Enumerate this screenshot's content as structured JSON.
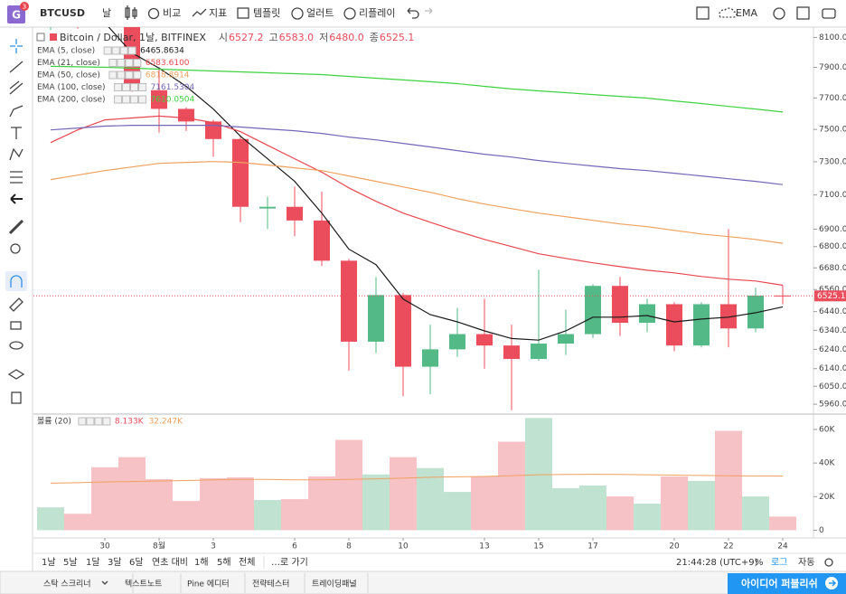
{
  "toolbar": {
    "logo": "G",
    "badge": "3",
    "symbol": "BTCUSD",
    "interval": "날",
    "items": [
      "비교",
      "지표",
      "템플릿",
      "얼러트",
      "리플레이"
    ],
    "indicator": "EMA"
  },
  "chart_data": [
    {
      "type": "candlestick",
      "title": "Bitcoin / Dollar, 1날, BITFINEX",
      "categories": [
        null,
        null,
        "30",
        null,
        "8월",
        null,
        "3",
        null,
        null,
        "6",
        null,
        "8",
        null,
        "10",
        null,
        null,
        "13",
        null,
        "15",
        null,
        "17",
        null,
        null,
        "20",
        null,
        "22",
        null,
        "24"
      ],
      "candles": {
        "open": [
          8180,
          8230,
          8220,
          8190,
          7750,
          7630,
          7550,
          7440,
          7020,
          7030,
          6950,
          6720,
          6280,
          6530,
          6150,
          6240,
          6320,
          6260,
          6190,
          6270,
          6320,
          6580,
          6380,
          6480,
          6260,
          6480,
          6350,
          6527.2
        ],
        "high": [
          8260,
          8280,
          8250,
          8230,
          7900,
          7640,
          7560,
          7460,
          7090,
          7150,
          7120,
          6730,
          6630,
          6540,
          6370,
          6460,
          6510,
          6370,
          6670,
          6450,
          6590,
          6630,
          6510,
          6490,
          6490,
          6900,
          6570,
          6583
        ],
        "low": [
          8150,
          8160,
          8170,
          7740,
          7480,
          7490,
          7330,
          6940,
          6900,
          6860,
          6690,
          6130,
          6220,
          6000,
          6010,
          6200,
          6140,
          5930,
          6180,
          6210,
          6300,
          6310,
          6330,
          6230,
          6250,
          6250,
          6330,
          6480
        ],
        "close": [
          8230,
          8210,
          8190,
          7760,
          7630,
          7550,
          7440,
          7030,
          7030,
          6950,
          6720,
          6280,
          6530,
          6150,
          6240,
          6320,
          6260,
          6190,
          6270,
          6320,
          6580,
          6380,
          6480,
          6260,
          6480,
          6350,
          6527,
          6525.1
        ]
      },
      "up_color": "#53b987",
      "down_color": "#eb4d5c",
      "ohlc_legend": {
        "labels": [
          "시",
          "고",
          "저",
          "종"
        ],
        "value_labels": [
          "6527.2",
          "6583.0",
          "6480.0",
          "6525.1"
        ]
      },
      "overlays": [
        {
          "name": "EMA (5, close)",
          "color": "#1a1a1a",
          "value_label": "6465.8634",
          "values": [
            8250,
            8240,
            8200,
            7996,
            7894,
            7775,
            7629,
            7458,
            7318,
            7181,
            6993,
            6785,
            6698,
            6508,
            6424,
            6385,
            6337,
            6297,
            6288,
            6337,
            6410,
            6410,
            6419,
            6385,
            6400,
            6410,
            6434,
            6465.8634
          ]
        },
        {
          "name": "EMA (21, close)",
          "color": "#e8474f",
          "value_label": "6583.6100",
          "values": [
            7418,
            7497,
            7560,
            7572,
            7584,
            7572,
            7543,
            7486,
            7401,
            7318,
            7237,
            7142,
            7062,
            6993,
            6940,
            6888,
            6841,
            6800,
            6759,
            6733,
            6708,
            6687,
            6667,
            6652,
            6632,
            6617,
            6607,
            6583.61
          ]
        },
        {
          "name": "EMA (50, close)",
          "color": "#f0a15e",
          "value_label": "6818.8914",
          "values": [
            7192,
            7219,
            7246,
            7268,
            7290,
            7296,
            7301,
            7296,
            7280,
            7263,
            7246,
            7214,
            7181,
            7148,
            7116,
            7078,
            7046,
            7019,
            6993,
            6972,
            6951,
            6930,
            6914,
            6893,
            6872,
            6857,
            6841,
            6818.8914
          ]
        },
        {
          "name": "EMA (100, close)",
          "color": "#7466b8",
          "value_label": "7161.5304",
          "values": [
            7497,
            7509,
            7521,
            7526,
            7526,
            7526,
            7526,
            7515,
            7503,
            7492,
            7475,
            7452,
            7435,
            7413,
            7391,
            7368,
            7346,
            7329,
            7307,
            7290,
            7274,
            7258,
            7246,
            7230,
            7214,
            7197,
            7181,
            7161.5304
          ]
        },
        {
          "name": "EMA (200, close)",
          "color": "#3fd23f",
          "value_label": "7610.0504",
          "values": [
            7906,
            7903,
            7900,
            7894,
            7888,
            7882,
            7876,
            7870,
            7864,
            7858,
            7852,
            7840,
            7828,
            7817,
            7805,
            7793,
            7775,
            7758,
            7746,
            7734,
            7722,
            7710,
            7699,
            7681,
            7664,
            7646,
            7629,
            7610.0504
          ]
        }
      ],
      "ylim": [
        5920,
        8170
      ],
      "log_scale": true,
      "grid": false,
      "yticks": [
        {
          "value": 8100,
          "label": "8100.0"
        },
        {
          "value": 7900,
          "label": "7900.0"
        },
        {
          "value": 7700,
          "label": "7700.0"
        },
        {
          "value": 7500,
          "label": "7500.0"
        },
        {
          "value": 7300,
          "label": "7300.0"
        },
        {
          "value": 7100,
          "label": "7100.0"
        },
        {
          "value": 6900,
          "label": "6900.0"
        },
        {
          "value": 6800,
          "label": "6800.0"
        },
        {
          "value": 6680,
          "label": "6680.0"
        },
        {
          "value": 6560,
          "label": "6560.0"
        },
        {
          "value": 6440,
          "label": "6440.0"
        },
        {
          "value": 6340,
          "label": "6340.0"
        },
        {
          "value": 6240,
          "label": "6240.0"
        },
        {
          "value": 6140,
          "label": "6140.0"
        },
        {
          "value": 6050,
          "label": "6050.0"
        },
        {
          "value": 5960,
          "label": "5960.0"
        }
      ]
    },
    {
      "type": "bar",
      "title": "볼륨 (20)",
      "values": [
        13600,
        9800,
        37500,
        43500,
        30400,
        17400,
        31000,
        31500,
        18000,
        18500,
        32000,
        53800,
        33200,
        43500,
        37000,
        22800,
        32000,
        52700,
        66800,
        25000,
        26600,
        20100,
        15800,
        32000,
        29300,
        59200,
        20100,
        8133
      ],
      "value_label": "8.133K",
      "up_color": "#bfe3d0",
      "down_color": "#f7c2c6",
      "ma": {
        "color": "#f0a15e",
        "value_label": "32.247K",
        "values": [
          28000,
          28300,
          28700,
          29000,
          29300,
          29600,
          30000,
          30300,
          30200,
          30000,
          30000,
          30300,
          30600,
          31000,
          31500,
          31800,
          32000,
          32500,
          33000,
          33200,
          33300,
          33200,
          33000,
          32800,
          32600,
          32400,
          32300,
          32247
        ]
      },
      "ylim": [
        -3000,
        67000
      ],
      "yticks": [
        0,
        {
          "value": 20000,
          "label": "20K"
        },
        {
          "value": 40000,
          "label": "40K"
        },
        {
          "value": 60000,
          "label": "60K"
        }
      ]
    }
  ],
  "range_bar": {
    "ranges": [
      "1날",
      "5날",
      "1달",
      "3달",
      "6달",
      "연초 대비",
      "1해",
      "5해",
      "전체"
    ],
    "goto": "…로 가기",
    "clock": "21:44:28 (UTC+9)",
    "options": [
      "%",
      "로그",
      "자동"
    ]
  },
  "footer": {
    "tabs": [
      "스탁 스크리너",
      "텍스트노트",
      "Pine 에디터",
      "전략테스터",
      "트레이딩패널"
    ],
    "publish": "아이디어 퍼블리쉬"
  }
}
